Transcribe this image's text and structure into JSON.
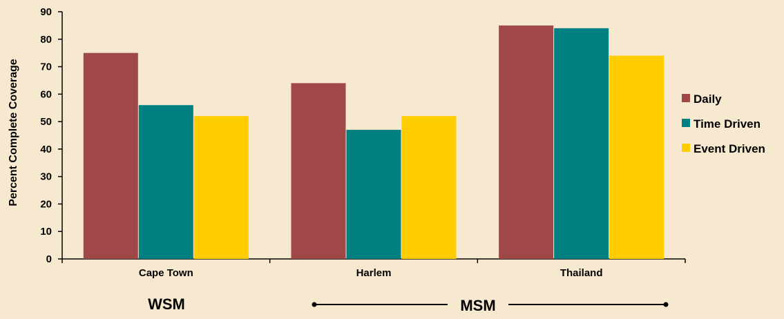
{
  "chart_data": {
    "type": "bar",
    "categories": [
      "Cape Town",
      "Harlem",
      "Thailand"
    ],
    "series": [
      {
        "name": "Daily",
        "values": [
          75,
          64,
          85
        ]
      },
      {
        "name": "Time Driven",
        "values": [
          56,
          47,
          84
        ]
      },
      {
        "name": "Event Driven",
        "values": [
          52,
          52,
          74
        ]
      }
    ],
    "ylabel": "Percent Complete Coverage",
    "xlabel": "",
    "ylim": [
      0,
      90
    ],
    "yticks": [
      0,
      10,
      20,
      30,
      40,
      50,
      60,
      70,
      80,
      90
    ],
    "grid": false,
    "legend_position": "right",
    "group_labels": [
      "WSM",
      "MSM"
    ]
  },
  "colors": {
    "background": "#f6e9cf",
    "series": [
      "#a04848",
      "#008080",
      "#ffcc00"
    ],
    "axis": "#000000"
  }
}
